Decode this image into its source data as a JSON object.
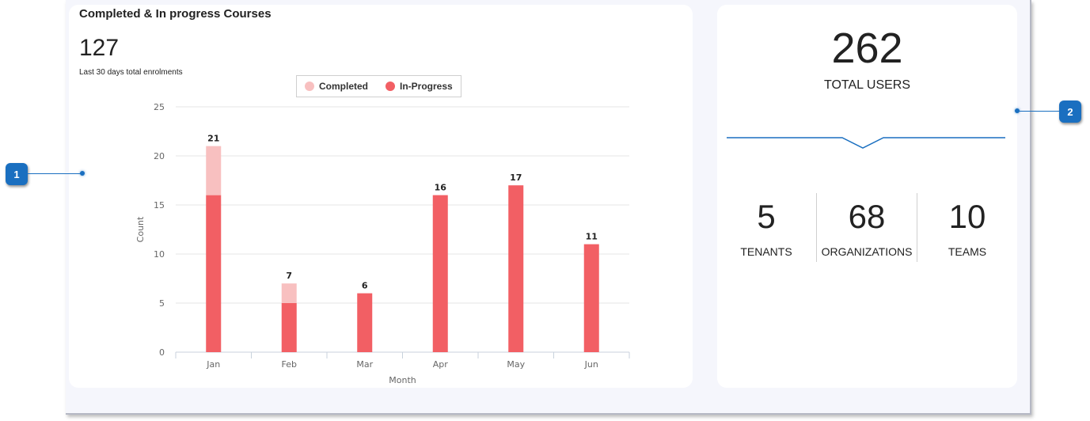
{
  "enrolments_card": {
    "title": "Completed & In progress Courses",
    "total": "127",
    "subtitle": "Last 30 days total enrolments",
    "legend": [
      {
        "label": "Completed",
        "color": "#f8c0c0"
      },
      {
        "label": "In-Progress",
        "color": "#f25f64"
      }
    ]
  },
  "chart_data": {
    "type": "bar",
    "stacked": true,
    "categories": [
      "Jan",
      "Feb",
      "Mar",
      "Apr",
      "May",
      "Jun"
    ],
    "series": [
      {
        "name": "In-Progress",
        "values": [
          16,
          5,
          6,
          16,
          17,
          11
        ],
        "color": "#f25f64"
      },
      {
        "name": "Completed",
        "values": [
          5,
          2,
          0,
          0,
          0,
          0
        ],
        "color": "#f8c0c0"
      }
    ],
    "totals": [
      "21",
      "7",
      "6",
      "16",
      "17",
      "11"
    ],
    "xlabel": "Month",
    "ylabel": "Count",
    "ylim": [
      0,
      25
    ],
    "yticks": [
      "0",
      "5",
      "10",
      "15",
      "20",
      "25"
    ],
    "grid": true,
    "legend_position": "top"
  },
  "users_card": {
    "total_users": "262",
    "total_users_label": "TOTAL USERS",
    "stats": [
      {
        "value": "5",
        "label": "TENANTS"
      },
      {
        "value": "68",
        "label": "ORGANIZATIONS"
      },
      {
        "value": "10",
        "label": "TEAMS"
      }
    ]
  },
  "callouts": [
    "1",
    "2"
  ],
  "colors": {
    "accent": "#1a6fc0",
    "in_progress": "#f25f64",
    "completed": "#f8c0c0"
  }
}
